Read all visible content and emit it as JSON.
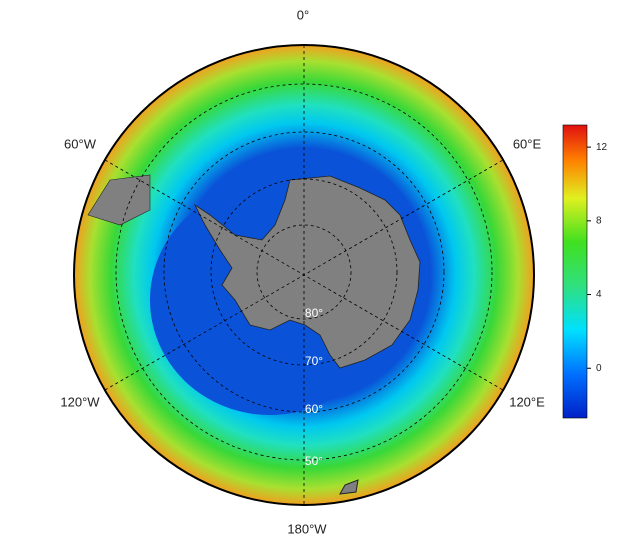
{
  "map": {
    "longitude_labels": [
      "0°",
      "60°E",
      "120°E",
      "180°W",
      "120°W",
      "60°W"
    ],
    "latitude_labels": [
      "80°",
      "70°",
      "60°",
      "50°"
    ]
  },
  "colorbar": {
    "range": [
      -2.7,
      13.2
    ],
    "ticks": [
      12,
      8,
      4,
      0
    ]
  }
}
